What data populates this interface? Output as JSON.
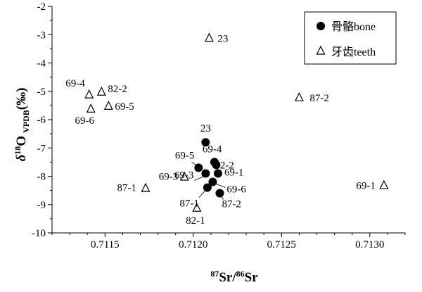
{
  "chart_data": {
    "type": "scatter",
    "xlabel": {
      "sup1": "87",
      "main1": "Sr/",
      "sup2": "86",
      "main2": "Sr"
    },
    "ylabel": {
      "delta": "δ",
      "sup": "18",
      "main": "O",
      "sub": "VPDB",
      "unit": "(‰)"
    },
    "xlim": [
      0.7112,
      0.7132
    ],
    "ylim": [
      -10,
      -2
    ],
    "xticks": [
      "0.7115",
      "0.7120",
      "0.7125",
      "0.7130"
    ],
    "yticks": [
      "-10",
      "-9",
      "-8",
      "-7",
      "-6",
      "-5",
      "-4",
      "-3",
      "-2"
    ],
    "xtick_values": [
      0.7115,
      0.712,
      0.7125,
      0.713
    ],
    "ytick_values": [
      -10,
      -9,
      -8,
      -7,
      -6,
      -5,
      -4,
      -3,
      -2
    ],
    "legend_position": "top-right",
    "series": [
      {
        "name": "骨骼bone",
        "marker": "filled-circle",
        "points": [
          {
            "label": "23",
            "x": 0.71207,
            "y": -6.8
          },
          {
            "label": "69-4",
            "x": 0.71212,
            "y": -7.5
          },
          {
            "label": "82-2",
            "x": 0.71213,
            "y": -7.6
          },
          {
            "label": "69-5",
            "x": 0.71203,
            "y": -7.7
          },
          {
            "label": "69-1",
            "x": 0.71214,
            "y": -7.9
          },
          {
            "label": "69-3",
            "x": 0.71207,
            "y": -7.9
          },
          {
            "label": "69-6",
            "x": 0.71211,
            "y": -8.2
          },
          {
            "label": "87-1",
            "x": 0.71208,
            "y": -8.4
          },
          {
            "label": "87-2",
            "x": 0.71215,
            "y": -8.6
          }
        ]
      },
      {
        "name": "牙齿teeth",
        "marker": "open-triangle",
        "points": [
          {
            "label": "23",
            "x": 0.71209,
            "y": -3.1
          },
          {
            "label": "69-4",
            "x": 0.71141,
            "y": -5.1
          },
          {
            "label": "82-2",
            "x": 0.71148,
            "y": -5.0
          },
          {
            "label": "69-5",
            "x": 0.71152,
            "y": -5.5
          },
          {
            "label": "69-6",
            "x": 0.71142,
            "y": -5.6
          },
          {
            "label": "87-2",
            "x": 0.7126,
            "y": -5.2
          },
          {
            "label": "69-3",
            "x": 0.71195,
            "y": -8.0
          },
          {
            "label": "87-1",
            "x": 0.71173,
            "y": -8.4
          },
          {
            "label": "82-1",
            "x": 0.71202,
            "y": -9.1
          },
          {
            "label": "69-1",
            "x": 0.71308,
            "y": -8.3
          }
        ]
      }
    ]
  }
}
